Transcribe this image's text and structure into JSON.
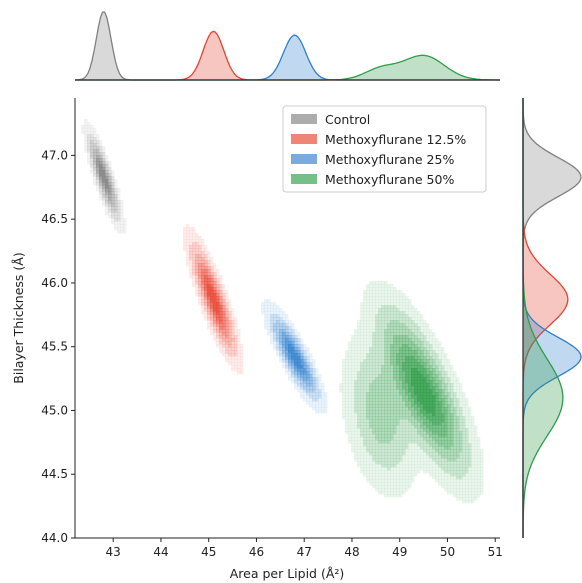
{
  "chart_data": {
    "type": "kde-joint",
    "title": "",
    "xlabel": "Area per Lipid (Å²)",
    "ylabel": "Bilayer Thickness (Å)",
    "xlim": [
      42.2,
      51.1
    ],
    "ylim": [
      44.0,
      47.45
    ],
    "xticks": [
      43,
      44,
      45,
      46,
      47,
      48,
      49,
      50,
      51
    ],
    "yticks": [
      44.0,
      44.5,
      45.0,
      45.5,
      46.0,
      46.5,
      47.0
    ],
    "grid": false,
    "legend_position": "top-right",
    "series": [
      {
        "name": "Control",
        "color": "#808080",
        "components": [
          {
            "mx": 42.8,
            "my": 46.83,
            "sx": 0.17,
            "sy": 0.17,
            "rho": -0.85,
            "w": 1.0
          }
        ]
      },
      {
        "name": "Methoxyflurane 12.5%",
        "color": "#e8422e",
        "components": [
          {
            "mx": 45.1,
            "my": 45.87,
            "sx": 0.24,
            "sy": 0.22,
            "rho": -0.85,
            "w": 1.0
          }
        ]
      },
      {
        "name": "Methoxyflurane 25%",
        "color": "#2f7fce",
        "components": [
          {
            "mx": 46.8,
            "my": 45.42,
            "sx": 0.26,
            "sy": 0.17,
            "rho": -0.85,
            "w": 1.0
          }
        ]
      },
      {
        "name": "Methoxyflurane 50%",
        "color": "#2e9c48",
        "components": [
          {
            "mx": 49.5,
            "my": 45.15,
            "sx": 0.48,
            "sy": 0.33,
            "rho": -0.75,
            "w": 1.0
          },
          {
            "mx": 48.6,
            "my": 44.98,
            "sx": 0.38,
            "sy": 0.3,
            "rho": -0.3,
            "w": 0.35
          }
        ]
      }
    ]
  }
}
